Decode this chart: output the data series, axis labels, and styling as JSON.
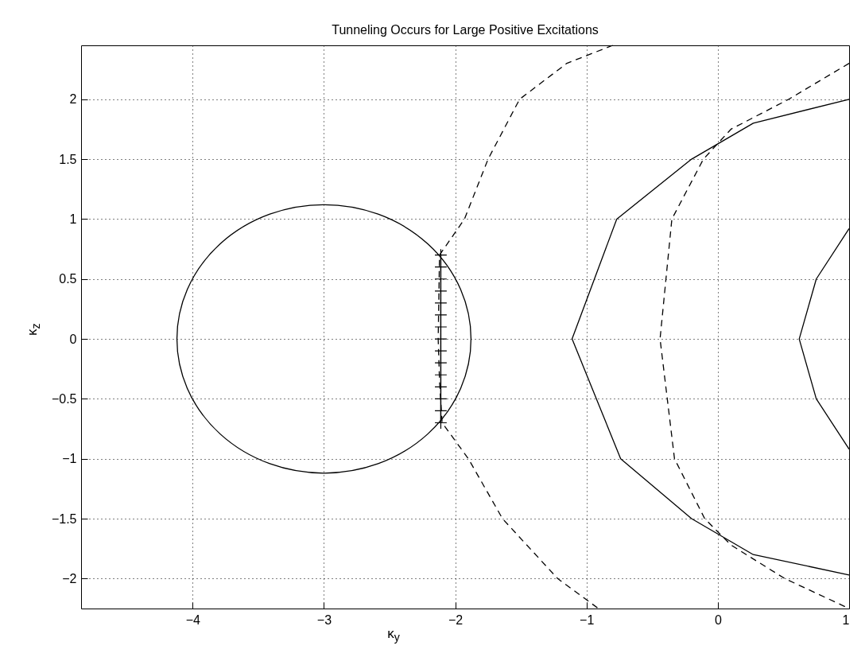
{
  "chart_data": {
    "type": "line",
    "title": "Tunneling Occurs for Large Positive Excitations",
    "xlabel": "κ$_{y}$",
    "ylabel": "κ$_{z}$",
    "xlim": [
      -4.85,
      1
    ],
    "ylim": [
      -2.25,
      2.45
    ],
    "xticks": [
      -4,
      -3,
      -2,
      -1,
      0,
      1
    ],
    "yticks": [
      -2,
      -1.5,
      -1,
      -0.5,
      0,
      0.5,
      1,
      1.5,
      2
    ],
    "grid": true,
    "series": [
      {
        "color": "#000000",
        "line_style": "dashed",
        "marker": "none",
        "x": [
          -0.8,
          -1.15,
          -1.51,
          -1.75,
          -1.93,
          -2.12,
          -2.13,
          -2.12,
          -2.1,
          -1.9,
          -1.64,
          -1.22,
          -0.91
        ],
        "values": [
          2.45,
          2.3,
          2,
          1.5,
          1,
          0.7,
          0,
          -0.35,
          -0.7,
          -1,
          -1.5,
          -2,
          -2.25
        ]
      },
      {
        "color": "#000000",
        "line_style": "dashed",
        "marker": "none",
        "x": [
          1,
          0.54,
          0.1,
          -0.11,
          -0.35,
          -0.44,
          -0.33,
          -0.1,
          0.1,
          0.51,
          1
        ],
        "values": [
          2.3,
          2,
          1.75,
          1.5,
          1,
          0,
          -1,
          -1.5,
          -1.72,
          -2,
          -2.25
        ]
      },
      {
        "color": "#000000",
        "line_style": "solid",
        "marker": "none",
        "x": [
          1,
          0.27,
          -0.2,
          -0.77,
          -1.11,
          -0.74,
          -0.2,
          0.27,
          1
        ],
        "values": [
          2,
          1.8,
          1.5,
          1,
          0,
          -1,
          -1.5,
          -1.8,
          -1.97
        ]
      },
      {
        "color": "#000000",
        "line_style": "solid",
        "marker": "none",
        "x": [
          1,
          0.75,
          0.62,
          0.75,
          1
        ],
        "values": [
          0.92,
          0.5,
          0,
          -0.5,
          -0.92
        ]
      },
      {
        "color": "#000000",
        "line_style": "solid",
        "marker": "cross",
        "x": [
          -2.11,
          -2.11,
          -2.11,
          -2.11,
          -2.11,
          -2.11,
          -2.11,
          -2.11,
          -2.11,
          -2.11,
          -2.11,
          -2.11,
          -2.11,
          -2.11,
          -2.11
        ],
        "values": [
          -0.7,
          -0.6,
          -0.5,
          -0.4,
          -0.3,
          -0.2,
          -0.1,
          0,
          0.1,
          0.2,
          0.3,
          0.4,
          0.5,
          0.6,
          0.7
        ]
      }
    ]
  }
}
